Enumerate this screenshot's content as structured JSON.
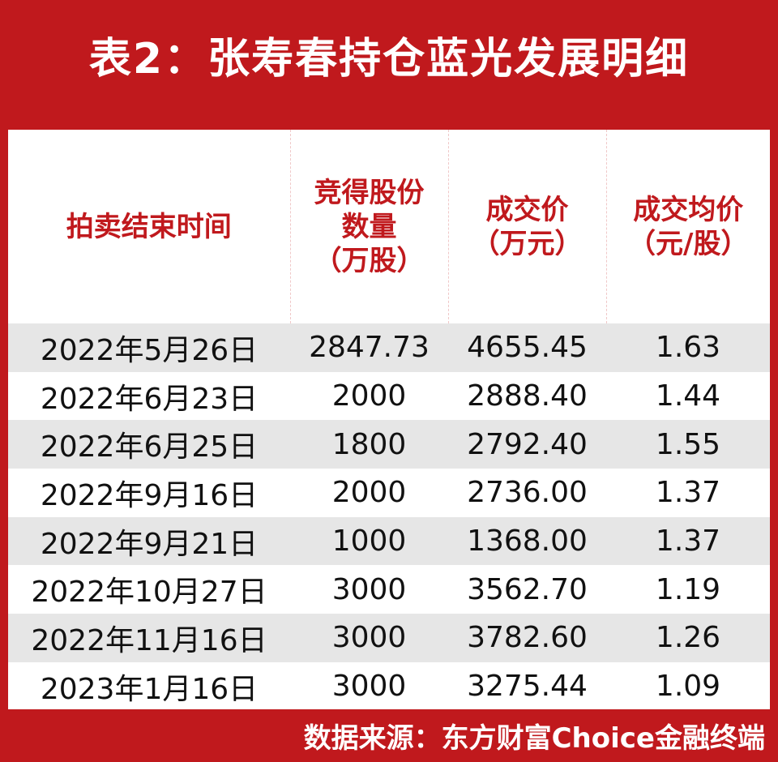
{
  "header": {
    "title": "表2：张寿春持仓蓝光发展明细"
  },
  "table": {
    "columns": [
      [
        "拍卖结束时间"
      ],
      [
        "竞得股份",
        "数量",
        "（万股）"
      ],
      [
        "成交价",
        "（万元）"
      ],
      [
        "成交均价",
        "（元/股）"
      ]
    ],
    "rows": [
      [
        "2022年5月26日",
        "2847.73",
        "4655.45",
        "1.63"
      ],
      [
        "2022年6月23日",
        "2000",
        "2888.40",
        "1.44"
      ],
      [
        "2022年6月25日",
        "1800",
        "2792.40",
        "1.55"
      ],
      [
        "2022年9月16日",
        "2000",
        "2736.00",
        "1.37"
      ],
      [
        "2022年9月21日",
        "1000",
        "1368.00",
        "1.37"
      ],
      [
        "2022年10月27日",
        "3000",
        "3562.70",
        "1.19"
      ],
      [
        "2022年11月16日",
        "3000",
        "3782.60",
        "1.26"
      ],
      [
        "2023年1月16日",
        "3000",
        "3275.44",
        "1.09"
      ]
    ]
  },
  "footer": {
    "source": "数据来源：东方财富Choice金融终端"
  }
}
